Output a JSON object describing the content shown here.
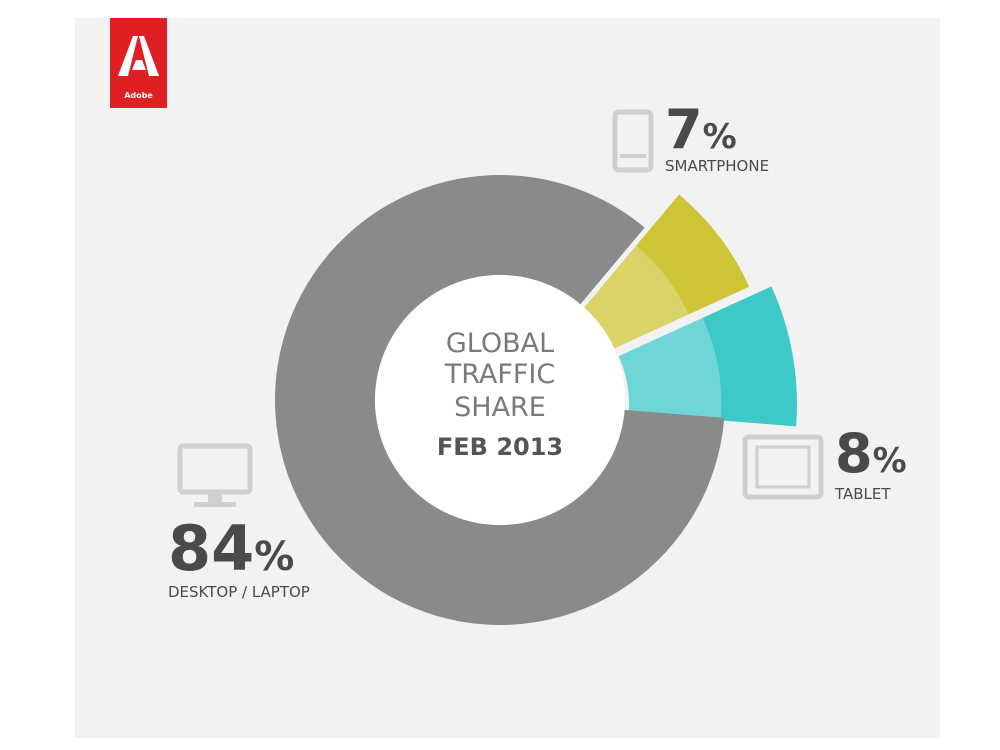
{
  "brand": {
    "name": "Adobe",
    "color": "#e01f22"
  },
  "chart_data": {
    "type": "pie",
    "center_label": [
      "GLOBAL",
      "TRAFFIC",
      "SHARE"
    ],
    "center_date": "FEB 2013",
    "slices": [
      {
        "label": "DESKTOP / LAPTOP",
        "value": 84,
        "color": "#8a8a8a",
        "icon": "monitor-icon"
      },
      {
        "label": "SMARTPHONE",
        "value": 7,
        "color": "#cdc536",
        "icon": "smartphone-icon"
      },
      {
        "label": "TABLET",
        "value": 8,
        "color": "#3ec9c9",
        "icon": "tablet-icon"
      }
    ],
    "percent_sign": "%"
  }
}
